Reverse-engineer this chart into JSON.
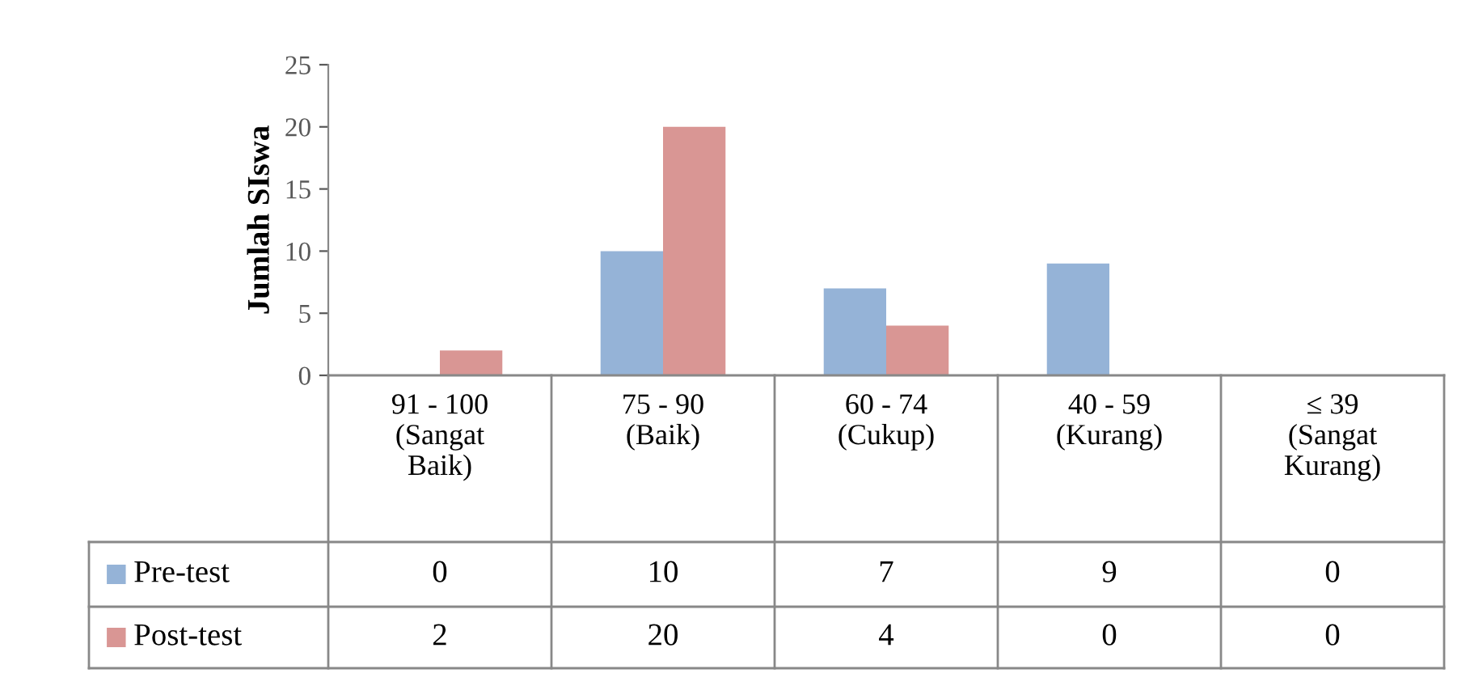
{
  "chart_data": {
    "type": "bar",
    "ylabel": "Jumlah SIswa",
    "categories": [
      "91 - 100\n(Sangat\nBaik)",
      "75 - 90\n(Baik)",
      "60 - 74\n(Cukup)",
      "40 - 59\n(Kurang)",
      "≤ 39\n(Sangat\nKurang)"
    ],
    "series": [
      {
        "name": "Pre-test",
        "color": "#95b3d7",
        "values": [
          0,
          10,
          7,
          9,
          0
        ]
      },
      {
        "name": "Post-test",
        "color": "#d99694",
        "values": [
          2,
          20,
          4,
          0,
          0
        ]
      }
    ],
    "ylim": [
      0,
      25
    ],
    "yticks": [
      0,
      5,
      10,
      15,
      20,
      25
    ],
    "grid": false,
    "legend": "bottom",
    "data_labels": true
  }
}
